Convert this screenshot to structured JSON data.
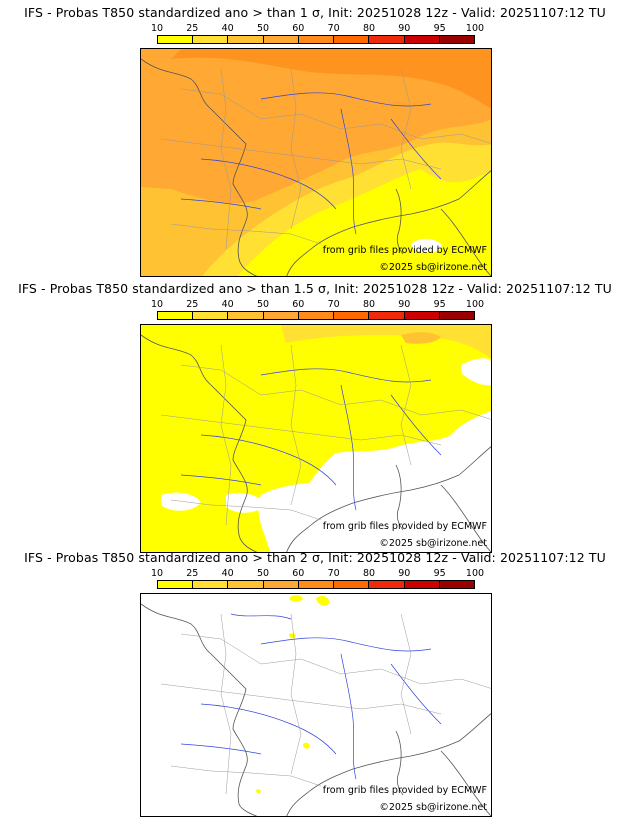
{
  "colorbar": {
    "ticks": [
      "10",
      "25",
      "40",
      "50",
      "60",
      "70",
      "80",
      "90",
      "95",
      "100"
    ],
    "colors": [
      "#ffff00",
      "#ffe033",
      "#ffc233",
      "#ffa833",
      "#ff8c1a",
      "#ff6a00",
      "#ee2a0a",
      "#cc0000",
      "#990000",
      "#5c0000"
    ]
  },
  "credits": {
    "source": "from grib files provided by ECMWF",
    "copyright": "©2025 sb@irizone.net"
  },
  "panels": [
    {
      "title": "IFS - Probas T850  standardized ano > than 1 σ, Init: 20251028 12z - Valid: 20251107:12 TU",
      "threshold": "1 σ",
      "dominant_classes": [
        "10",
        "25",
        "40",
        "50"
      ]
    },
    {
      "title": "IFS - Probas T850  standardized ano > than 1.5 σ, Init: 20251028 12z - Valid: 20251107:12 TU",
      "threshold": "1.5 σ",
      "dominant_classes": [
        "10",
        "25"
      ]
    },
    {
      "title": "IFS - Probas T850  standardized ano > than 2 σ, Init: 20251028 12z - Valid: 20251107:12 TU",
      "threshold": "2 σ",
      "dominant_classes": [
        "10"
      ]
    }
  ]
}
